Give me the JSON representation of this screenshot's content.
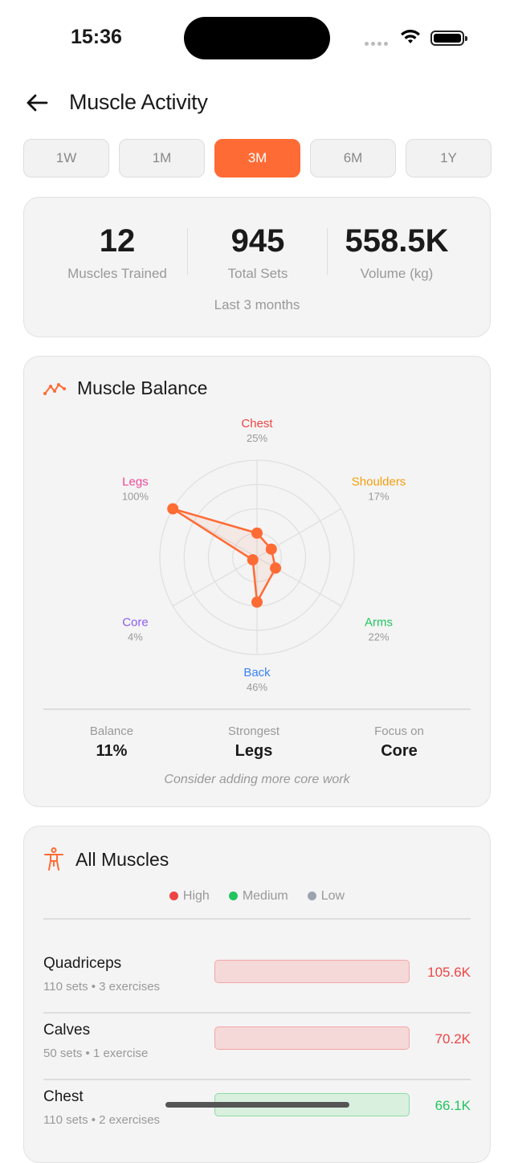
{
  "status_bar": {
    "time": "15:36"
  },
  "header": {
    "title": "Muscle Activity",
    "back_icon": "arrow-left-icon"
  },
  "tabs": [
    {
      "label": "1W"
    },
    {
      "label": "1M"
    },
    {
      "label": "3M",
      "active": true
    },
    {
      "label": "6M"
    },
    {
      "label": "1Y"
    }
  ],
  "summary": {
    "stats": [
      {
        "value": "12",
        "label": "Muscles Trained"
      },
      {
        "value": "945",
        "label": "Total Sets"
      },
      {
        "value": "558.5K",
        "label": "Volume (kg)"
      }
    ],
    "period": "Last 3 months"
  },
  "balance": {
    "title": "Muscle Balance",
    "icon": "trend-line-icon",
    "accent": "#ff6b35",
    "stats": [
      {
        "label": "Balance",
        "value": "11%"
      },
      {
        "label": "Strongest",
        "value": "Legs"
      },
      {
        "label": "Focus on",
        "value": "Core"
      }
    ],
    "hint": "Consider adding more core work"
  },
  "chart_data": {
    "type": "radar",
    "axes": [
      {
        "name": "Chest",
        "label": "25%",
        "value": 25,
        "color": "#ef4444"
      },
      {
        "name": "Shoulders",
        "label": "17%",
        "value": 17,
        "color": "#f59e0b"
      },
      {
        "name": "Arms",
        "label": "22%",
        "value": 22,
        "color": "#22c55e"
      },
      {
        "name": "Back",
        "label": "46%",
        "value": 46,
        "color": "#3b82f6"
      },
      {
        "name": "Core",
        "label": "4%",
        "value": 4,
        "color": "#8b5cf6"
      },
      {
        "name": "Legs",
        "label": "100%",
        "value": 100,
        "color": "#ec4899"
      }
    ],
    "range": [
      0,
      100
    ],
    "grid_rings": 4,
    "series_color": "#ff6b35"
  },
  "muscles": {
    "title": "All Muscles",
    "icon": "person-body-icon",
    "legend": [
      {
        "label": "High",
        "color": "#ef4444"
      },
      {
        "label": "Medium",
        "color": "#22c55e"
      },
      {
        "label": "Low",
        "color": "#9ca3af"
      }
    ],
    "items": [
      {
        "name": "Quadriceps",
        "sub": "110 sets • 3 exercises",
        "value": "105.6K",
        "level": "High",
        "fill": 1
      },
      {
        "name": "Calves",
        "sub": "50 sets • 1 exercise",
        "value": "70.2K",
        "level": "High",
        "fill": 1
      },
      {
        "name": "Chest",
        "sub": "110 sets • 2 exercises",
        "value": "66.1K",
        "level": "Medium",
        "fill": 1
      }
    ]
  }
}
